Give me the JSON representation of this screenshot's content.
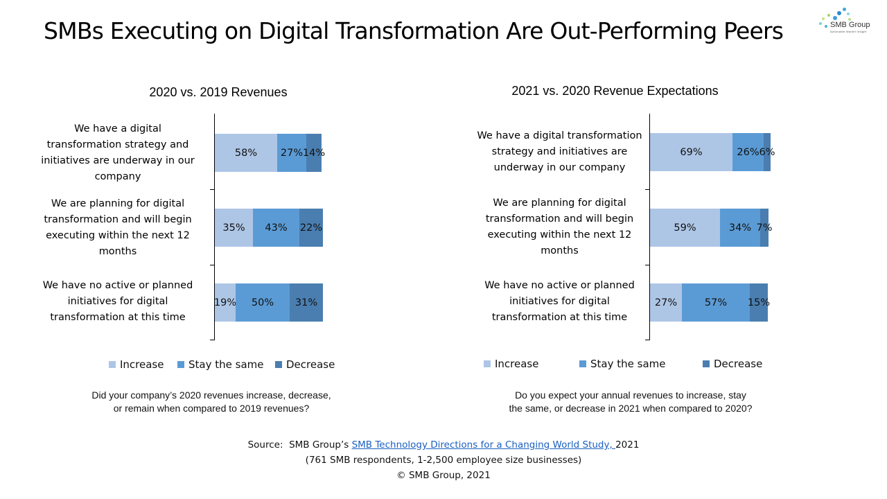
{
  "slide": {
    "title": "SMBs Executing on Digital Transformation Are Out-Performing Peers",
    "logo": {
      "name": "SMB Group",
      "tagline": "Actionable Market Insight"
    }
  },
  "colors": {
    "increase": "#aec6e6",
    "stay_same": "#5b9bd5",
    "decrease": "#4a7eb0"
  },
  "chart_data": [
    {
      "type": "bar",
      "orientation": "horizontal-stacked",
      "title": "2020 vs. 2019 Revenues",
      "categories": [
        "We have a digital transformation strategy and initiatives are underway in our company",
        "We are planning for digital transformation and will begin executing within the next 12 months",
        "We have no active or planned initiatives for digital transformation at this time"
      ],
      "series": [
        {
          "name": "Increase",
          "values": [
            58,
            35,
            19
          ],
          "labels": [
            "58%",
            "35%",
            "19%"
          ]
        },
        {
          "name": "Stay the same",
          "values": [
            27,
            43,
            50
          ],
          "labels": [
            "27%",
            "43%",
            "50%"
          ]
        },
        {
          "name": "Decrease",
          "values": [
            14,
            22,
            31
          ],
          "labels": [
            "14%",
            "22%",
            "31%"
          ]
        }
      ],
      "xlabel": "",
      "ylabel": "",
      "xlim": [
        0,
        100
      ],
      "legend": [
        "Increase",
        "Stay the same",
        "Decrease"
      ],
      "legend_position": "bottom",
      "question": "Did your company’s 2020 revenues increase, decrease, or remain when compared to 2019 revenues?"
    },
    {
      "type": "bar",
      "orientation": "horizontal-stacked",
      "title": "2021 vs. 2020 Revenue Expectations",
      "categories": [
        "We have a digital transformation strategy and initiatives are underway in our company",
        "We are planning for digital transformation and will begin executing within the next 12 months",
        "We have no active or planned initiatives for digital transformation at this time"
      ],
      "series": [
        {
          "name": "Increase",
          "values": [
            69,
            59,
            27
          ],
          "labels": [
            "69%",
            "59%",
            "27%"
          ]
        },
        {
          "name": "Stay the same",
          "values": [
            26,
            34,
            57
          ],
          "labels": [
            "26%",
            "34%",
            "57%"
          ]
        },
        {
          "name": "Decrease",
          "values": [
            6,
            7,
            15
          ],
          "labels": [
            "6%",
            "7%",
            "15%"
          ]
        }
      ],
      "xlabel": "",
      "ylabel": "",
      "xlim": [
        0,
        100
      ],
      "legend": [
        "Increase",
        "Stay the same",
        "Decrease"
      ],
      "legend_position": "bottom",
      "question": "Do you expect your annual revenues to increase, stay the same, or decrease in 2021 when compared to 2020?"
    }
  ],
  "left": {
    "cat_lines": [
      [
        "We have a digital",
        "transformation strategy and",
        "initiatives are underway in our",
        "company"
      ],
      [
        "We are planning for digital",
        "transformation and will begin",
        "executing within the next 12",
        "months"
      ],
      [
        "We have no active or planned",
        "initiatives for digital",
        "transformation at this time"
      ]
    ],
    "question_lines": [
      "Did your company’s 2020 revenues increase, decrease,",
      "or remain when compared to 2019 revenues?"
    ]
  },
  "right": {
    "cat_lines": [
      [
        "We have a digital transformation",
        "strategy and initiatives are",
        "underway in our company"
      ],
      [
        "We are planning for digital",
        "transformation and will begin",
        "executing within the next 12",
        "months"
      ],
      [
        "We have no active or planned",
        "initiatives for digital",
        "transformation at this time"
      ]
    ],
    "question_lines": [
      "Do you expect your annual revenues to increase, stay",
      "the same, or decrease in 2021 when compared to 2020?"
    ]
  },
  "source": {
    "prefix": "Source:  SMB Group’s ",
    "link_text": "SMB Technology Directions for a Changing World Study, ",
    "suffix": "2021",
    "line2": "(761 SMB respondents, 1-2,500 employee size  businesses)",
    "line3": "© SMB Group, 2021"
  }
}
